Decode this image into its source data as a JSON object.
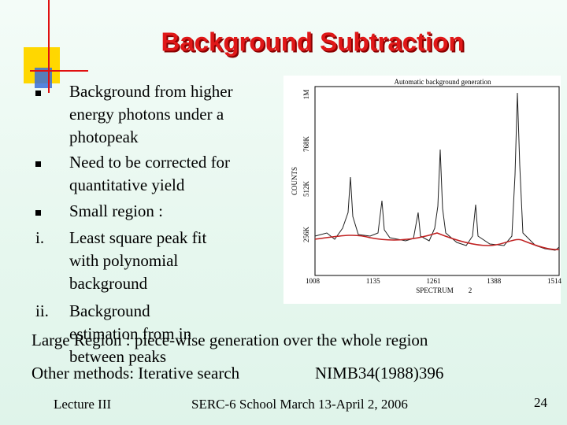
{
  "title": "Background Subtraction",
  "bullets": [
    {
      "lines": [
        "Background from higher",
        "energy photons under a",
        "photopeak"
      ]
    },
    {
      "lines": [
        "Need to be corrected for",
        "quantitative yield"
      ]
    },
    {
      "lines": [
        "Small region :"
      ]
    },
    {
      "marker": "i.",
      "lines": [
        "Least square peak fit",
        "with polynomial",
        "background"
      ]
    },
    {
      "marker": "ii.",
      "lines": [
        "Background",
        "estimation from in",
        "between peaks"
      ]
    }
  ],
  "large_region": "Large Region : piece-wise generation over the whole region",
  "other_methods": "Other methods: Iterative search",
  "reference": "NIMB34(1988)396",
  "figure": {
    "title": "Automatic background generation",
    "y_label": "COUNTS",
    "yticks": [
      "1M",
      "768K",
      "512K",
      "256K"
    ],
    "xticks": [
      "1008",
      "1135",
      "1261",
      "1388",
      "1514"
    ],
    "x_label": "SPECTRUM",
    "spectrum_number": "2"
  },
  "footer": {
    "left": "Lecture III",
    "center": "SERC-6 School March 13-April 2, 2006",
    "page": "24"
  }
}
